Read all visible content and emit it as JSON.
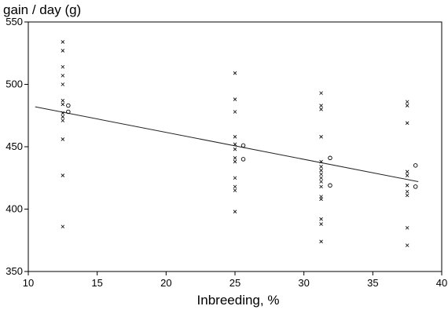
{
  "chart_data": {
    "type": "scatter",
    "title": "",
    "xlabel": "Inbreeding, %",
    "ylabel": "gain / day (g)",
    "xlim": [
      10,
      40
    ],
    "ylim": [
      350,
      550
    ],
    "xticks": [
      "10",
      "15",
      "20",
      "25",
      "30",
      "35",
      "40"
    ],
    "yticks": [
      "350",
      "400",
      "450",
      "500",
      "550"
    ],
    "grid": false,
    "series": [
      {
        "marker": "x",
        "points": [
          [
            12.5,
            534
          ],
          [
            12.5,
            527
          ],
          [
            12.5,
            514
          ],
          [
            12.5,
            507
          ],
          [
            12.5,
            500
          ],
          [
            12.5,
            487
          ],
          [
            12.5,
            484
          ],
          [
            12.5,
            477
          ],
          [
            12.5,
            474
          ],
          [
            12.5,
            471
          ],
          [
            12.5,
            456
          ],
          [
            12.5,
            427
          ],
          [
            12.5,
            386
          ],
          [
            25,
            509
          ],
          [
            25,
            488
          ],
          [
            25,
            478
          ],
          [
            25,
            458
          ],
          [
            25,
            452
          ],
          [
            25,
            448
          ],
          [
            25,
            441
          ],
          [
            25,
            438
          ],
          [
            25,
            425
          ],
          [
            25,
            418
          ],
          [
            25,
            415
          ],
          [
            25,
            398
          ],
          [
            31.25,
            493
          ],
          [
            31.25,
            483
          ],
          [
            31.25,
            480
          ],
          [
            31.25,
            458
          ],
          [
            31.25,
            438
          ],
          [
            31.25,
            434
          ],
          [
            31.25,
            431
          ],
          [
            31.25,
            428
          ],
          [
            31.25,
            425
          ],
          [
            31.25,
            422
          ],
          [
            31.25,
            418
          ],
          [
            31.25,
            410
          ],
          [
            31.25,
            408
          ],
          [
            31.25,
            392
          ],
          [
            31.25,
            388
          ],
          [
            31.25,
            374
          ],
          [
            37.5,
            486
          ],
          [
            37.5,
            483
          ],
          [
            37.5,
            469
          ],
          [
            37.5,
            430
          ],
          [
            37.5,
            427
          ],
          [
            37.5,
            419
          ],
          [
            37.5,
            414
          ],
          [
            37.5,
            411
          ],
          [
            37.5,
            385
          ],
          [
            37.5,
            371
          ]
        ]
      },
      {
        "marker": "o",
        "points": [
          [
            12.9,
            483
          ],
          [
            12.9,
            478
          ],
          [
            25.6,
            451
          ],
          [
            25.6,
            440
          ],
          [
            31.9,
            441
          ],
          [
            31.9,
            419
          ],
          [
            38.1,
            435
          ],
          [
            38.1,
            418
          ]
        ]
      }
    ],
    "regression_line": {
      "x": [
        10.5,
        38.3
      ],
      "y": [
        482,
        422
      ]
    }
  }
}
